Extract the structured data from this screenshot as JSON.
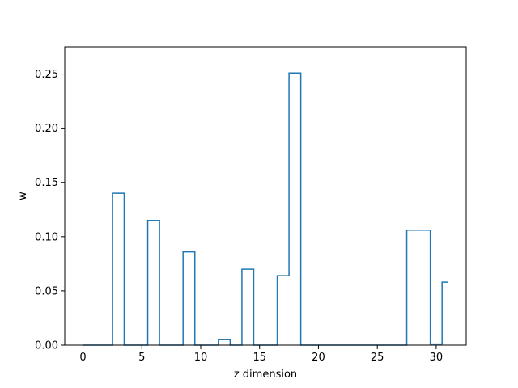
{
  "chart_data": {
    "type": "line",
    "drawstyle": "steps-mid",
    "xlabel": "z dimension",
    "ylabel": "w",
    "xlim": [
      -1.55,
      32.55
    ],
    "ylim": [
      0,
      0.275
    ],
    "xticks": [
      0,
      5,
      10,
      15,
      20,
      25,
      30
    ],
    "xtick_labels": [
      "0",
      "5",
      "10",
      "15",
      "20",
      "25",
      "30"
    ],
    "yticks": [
      0,
      0.05,
      0.1,
      0.15,
      0.2,
      0.25
    ],
    "ytick_labels": [
      "0.00",
      "0.05",
      "0.10",
      "0.15",
      "0.20",
      "0.25"
    ],
    "grid": false,
    "series": [
      {
        "color": "#1f77b4",
        "x": [
          0,
          1,
          2,
          3,
          4,
          5,
          6,
          7,
          8,
          9,
          10,
          11,
          12,
          13,
          14,
          15,
          16,
          17,
          18,
          19,
          20,
          21,
          22,
          23,
          24,
          25,
          26,
          27,
          28,
          29,
          30,
          31
        ],
        "y": [
          0,
          0,
          0,
          0.14,
          0,
          0,
          0.115,
          0,
          0,
          0.086,
          0,
          0,
          0.005,
          0,
          0.07,
          0,
          0,
          0.064,
          0.251,
          0,
          0,
          0,
          0,
          0,
          0,
          0,
          0,
          0,
          0.106,
          0.106,
          0.001,
          0.058
        ]
      }
    ]
  }
}
